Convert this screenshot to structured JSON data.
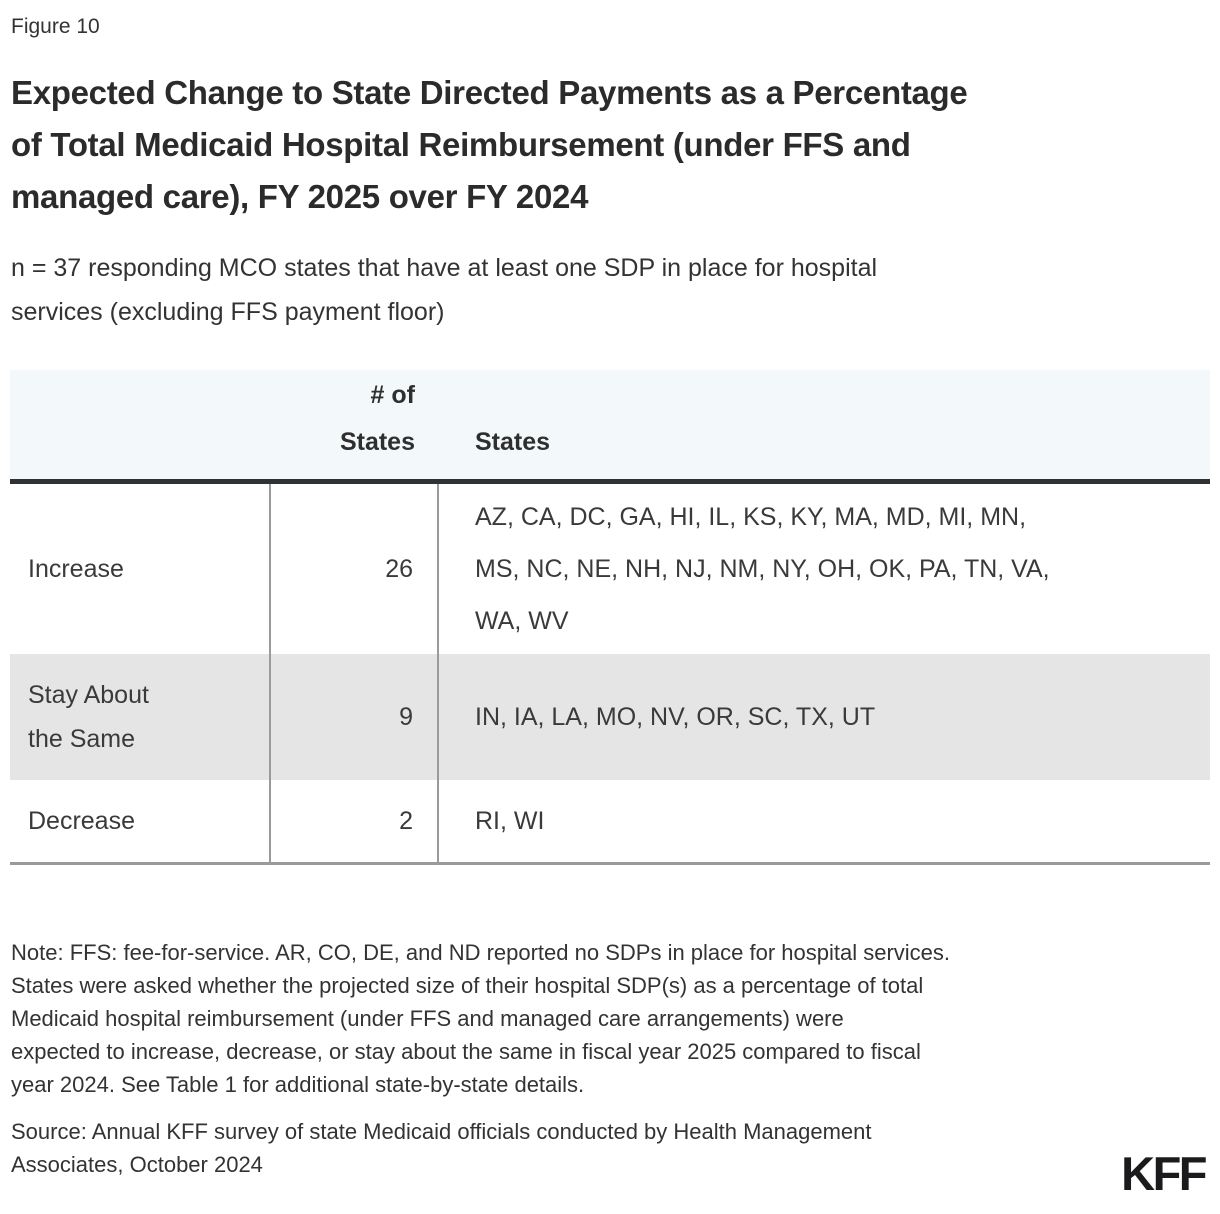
{
  "figure_label": "Figure 10",
  "title": "Expected Change to State Directed Payments as a Percentage\nof Total Medicaid Hospital Reimbursement (under FFS and\nmanaged care), FY 2025 over FY 2024",
  "subtitle": "n = 37 responding MCO states that have at least one SDP in place for hospital\nservices (excluding FFS payment floor)",
  "table": {
    "header": {
      "num_states": "# of\nStates",
      "states": "States"
    },
    "rows": [
      {
        "label": "Increase",
        "count": "26",
        "states": "AZ, CA, DC, GA, HI, IL, KS, KY, MA, MD, MI, MN,\nMS, NC, NE, NH, NJ, NM, NY, OH, OK, PA, TN, VA,\nWA, WV"
      },
      {
        "label": "Stay About\nthe Same",
        "count": "9",
        "states": "IN, IA, LA, MO, NV, OR, SC, TX, UT"
      },
      {
        "label": "Decrease",
        "count": "2",
        "states": "RI, WI"
      }
    ]
  },
  "note": "Note: FFS: fee-for-service. AR, CO, DE, and ND reported no SDPs in place for hospital services.\nStates were asked whether the projected size of their hospital SDP(s) as a percentage of total\nMedicaid hospital reimbursement (under FFS and managed care arrangements) were\nexpected to increase, decrease, or stay about the same in fiscal year 2025 compared to fiscal\nyear 2024. See Table 1 for additional state-by-state details.",
  "source": "Source: Annual KFF survey of state Medicaid officials conducted by Health Management\nAssociates, October 2024",
  "logo_text": "KFF",
  "colors": {
    "header_bg": "#f3f9fa",
    "shaded_row_bg": "#e5e5e5",
    "header_rule": "#2e3235",
    "column_divider": "#9a9a9a",
    "table_bottom_rule": "#9a9a9a",
    "title_text": "#2b2b2b",
    "body_text": "#333333",
    "logo_text": "#1b1b1d"
  },
  "chart_data": {
    "type": "table",
    "title": "Expected Change to State Directed Payments as a Percentage of Total Medicaid Hospital Reimbursement (under FFS and managed care), FY 2025 over FY 2024",
    "subtitle": "n = 37 responding MCO states that have at least one SDP in place for hospital services (excluding FFS payment floor)",
    "n": 37,
    "columns": [
      "",
      "# of States",
      "States"
    ],
    "categories": [
      "Increase",
      "Stay About the Same",
      "Decrease"
    ],
    "values": [
      26,
      9,
      2
    ],
    "rows": [
      {
        "change": "Increase",
        "num_states": 26,
        "states": [
          "AZ",
          "CA",
          "DC",
          "GA",
          "HI",
          "IL",
          "KS",
          "KY",
          "MA",
          "MD",
          "MI",
          "MN",
          "MS",
          "NC",
          "NE",
          "NH",
          "NJ",
          "NM",
          "NY",
          "OH",
          "OK",
          "PA",
          "TN",
          "VA",
          "WA",
          "WV"
        ]
      },
      {
        "change": "Stay About the Same",
        "num_states": 9,
        "states": [
          "IN",
          "IA",
          "LA",
          "MO",
          "NV",
          "OR",
          "SC",
          "TX",
          "UT"
        ]
      },
      {
        "change": "Decrease",
        "num_states": 2,
        "states": [
          "RI",
          "WI"
        ]
      }
    ]
  }
}
